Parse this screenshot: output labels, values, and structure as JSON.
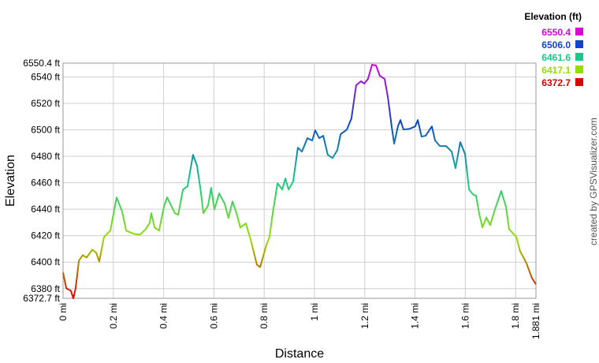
{
  "chart_data": {
    "type": "line",
    "x_label": "Distance",
    "y_label": "Elevation",
    "credit": "created by GPSVisualizer.com",
    "legend_title": "Elevation (ft)",
    "legend": [
      {
        "value": 6550.4,
        "label": "6550.4",
        "color": "#dd00dd"
      },
      {
        "value": 6506.0,
        "label": "6506.0",
        "color": "#1144cc"
      },
      {
        "value": 6461.6,
        "label": "6461.6",
        "color": "#11cc88"
      },
      {
        "value": 6417.1,
        "label": "6417.1",
        "color": "#99dd00"
      },
      {
        "value": 6372.7,
        "label": "6372.7",
        "color": "#dd0000"
      }
    ],
    "grid": true,
    "xlim": [
      0,
      1.881
    ],
    "ylim": [
      6372.7,
      6550.4
    ],
    "xticks": [
      {
        "value": 0,
        "label": "0 mi"
      },
      {
        "value": 0.2,
        "label": "0.2 mi"
      },
      {
        "value": 0.4,
        "label": "0.4 mi"
      },
      {
        "value": 0.6,
        "label": "0.6 mi"
      },
      {
        "value": 0.8,
        "label": "0.8 mi"
      },
      {
        "value": 1,
        "label": "1 mi"
      },
      {
        "value": 1.2,
        "label": "1.2 mi"
      },
      {
        "value": 1.4,
        "label": "1.4 mi"
      },
      {
        "value": 1.6,
        "label": "1.6 mi"
      },
      {
        "value": 1.8,
        "label": "1.8 mi"
      },
      {
        "value": 1.881,
        "label": "1.881 mi"
      }
    ],
    "yticks": [
      {
        "value": 6372.7,
        "label": "6372.7 ft"
      },
      {
        "value": 6380,
        "label": "6380 ft"
      },
      {
        "value": 6400,
        "label": "6400 ft"
      },
      {
        "value": 6420,
        "label": "6420 ft"
      },
      {
        "value": 6440,
        "label": "6440 ft"
      },
      {
        "value": 6460,
        "label": "6460 ft"
      },
      {
        "value": 6480,
        "label": "6480 ft"
      },
      {
        "value": 6500,
        "label": "6500 ft"
      },
      {
        "value": 6520,
        "label": "6520 ft"
      },
      {
        "value": 6540,
        "label": "6540 ft"
      },
      {
        "value": 6550.4,
        "label": "6550.4 ft"
      }
    ],
    "x": [
      0.0,
      0.013,
      0.031,
      0.041,
      0.05,
      0.063,
      0.078,
      0.094,
      0.116,
      0.132,
      0.144,
      0.163,
      0.188,
      0.213,
      0.235,
      0.251,
      0.282,
      0.307,
      0.329,
      0.345,
      0.351,
      0.364,
      0.382,
      0.401,
      0.414,
      0.445,
      0.458,
      0.477,
      0.495,
      0.517,
      0.533,
      0.549,
      0.558,
      0.577,
      0.589,
      0.602,
      0.621,
      0.643,
      0.658,
      0.674,
      0.69,
      0.705,
      0.727,
      0.746,
      0.771,
      0.784,
      0.809,
      0.821,
      0.834,
      0.853,
      0.872,
      0.884,
      0.897,
      0.915,
      0.934,
      0.95,
      0.972,
      0.991,
      1.003,
      1.019,
      1.035,
      1.053,
      1.072,
      1.091,
      1.104,
      1.129,
      1.147,
      1.166,
      1.185,
      1.198,
      1.213,
      1.229,
      1.245,
      1.26,
      1.279,
      1.292,
      1.307,
      1.317,
      1.332,
      1.342,
      1.354,
      1.379,
      1.401,
      1.411,
      1.426,
      1.442,
      1.467,
      1.48,
      1.499,
      1.524,
      1.546,
      1.561,
      1.58,
      1.599,
      1.615,
      1.63,
      1.643,
      1.655,
      1.668,
      1.684,
      1.699,
      1.718,
      1.743,
      1.762,
      1.774,
      1.803,
      1.818,
      1.843,
      1.865,
      1.881
    ],
    "values": [
      6392.2,
      6380.2,
      6378.4,
      6372.7,
      6380.2,
      6401.1,
      6405.3,
      6403.5,
      6409.5,
      6407.1,
      6400.5,
      6419.0,
      6423.8,
      6448.9,
      6438.2,
      6423.8,
      6421.4,
      6420.8,
      6425.0,
      6429.8,
      6437.0,
      6426.2,
      6423.8,
      6441.7,
      6448.9,
      6437.0,
      6435.8,
      6454.9,
      6457.3,
      6481.1,
      6472.8,
      6451.9,
      6437.0,
      6442.9,
      6456.1,
      6439.9,
      6451.9,
      6444.1,
      6433.4,
      6445.9,
      6437.0,
      6426.2,
      6429.2,
      6417.2,
      6398.1,
      6396.3,
      6413.1,
      6419.0,
      6437.0,
      6459.6,
      6454.9,
      6463.2,
      6454.9,
      6460.8,
      6486.5,
      6483.5,
      6493.7,
      6491.9,
      6499.6,
      6493.7,
      6495.5,
      6481.1,
      6478.7,
      6484.7,
      6496.7,
      6500.2,
      6508.6,
      6533.7,
      6536.7,
      6534.9,
      6538.5,
      6549.2,
      6548.6,
      6540.8,
      6538.5,
      6524.7,
      6502.6,
      6489.5,
      6502.6,
      6507.4,
      6500.2,
      6500.8,
      6502.6,
      6507.4,
      6494.9,
      6495.5,
      6502.6,
      6491.9,
      6487.7,
      6487.7,
      6483.5,
      6471.0,
      6490.7,
      6481.7,
      6454.9,
      6451.3,
      6450.1,
      6437.0,
      6426.2,
      6433.8,
      6428.0,
      6439.9,
      6453.7,
      6441.7,
      6425.0,
      6419.0,
      6408.3,
      6399.3,
      6388.0,
      6383.2
    ]
  }
}
